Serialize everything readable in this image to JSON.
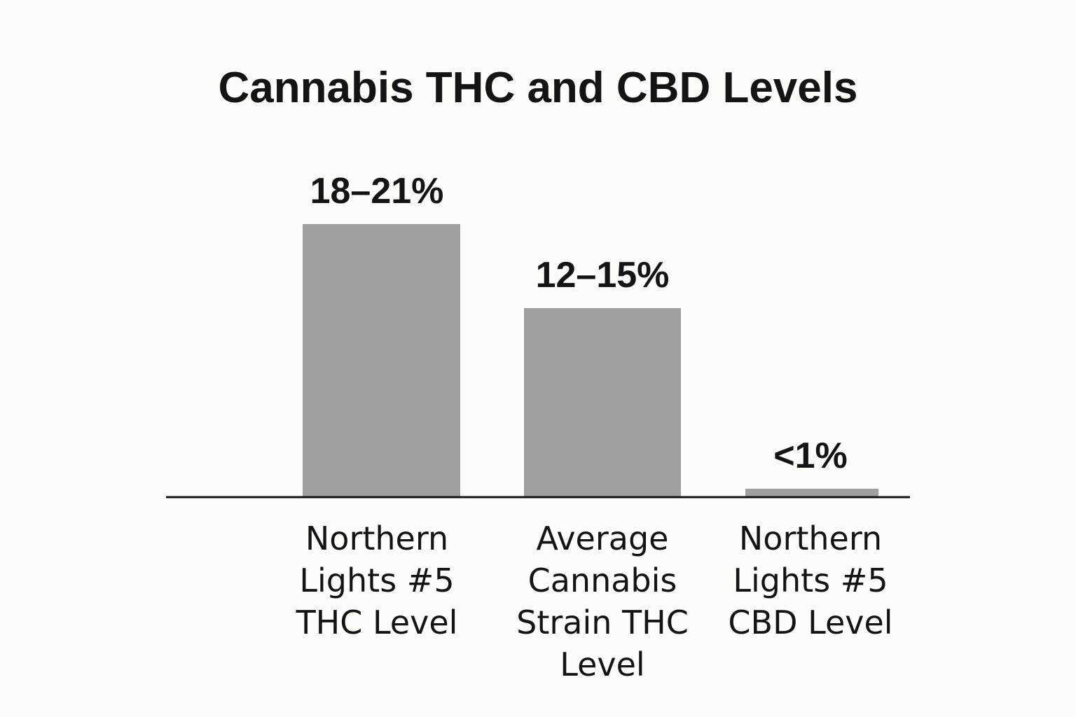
{
  "chart_data": {
    "type": "bar",
    "title": "Cannabis THC and CBD Levels",
    "categories": [
      "Northern Lights #5 THC Level",
      "Average Cannabis Strain THC Level",
      "Northern Lights #5 CBD Level"
    ],
    "category_lines": [
      [
        "Northern",
        "Lights #5",
        "THC Level"
      ],
      [
        "Average",
        "Cannabis",
        "Strain THC",
        "Level"
      ],
      [
        "Northern",
        "Lights #5",
        "CBD Level"
      ]
    ],
    "values": [
      19.5,
      13.5,
      0.6
    ],
    "value_labels": [
      "18–21%",
      "12–15%",
      "<1%"
    ],
    "xlabel": "",
    "ylabel": "",
    "ylim": [
      0,
      21
    ],
    "grid": false,
    "legend": "none",
    "colors": {
      "bar": "#a0a09f",
      "axis": "#141414",
      "text": "#141414",
      "background": "#fcfcf8"
    }
  }
}
